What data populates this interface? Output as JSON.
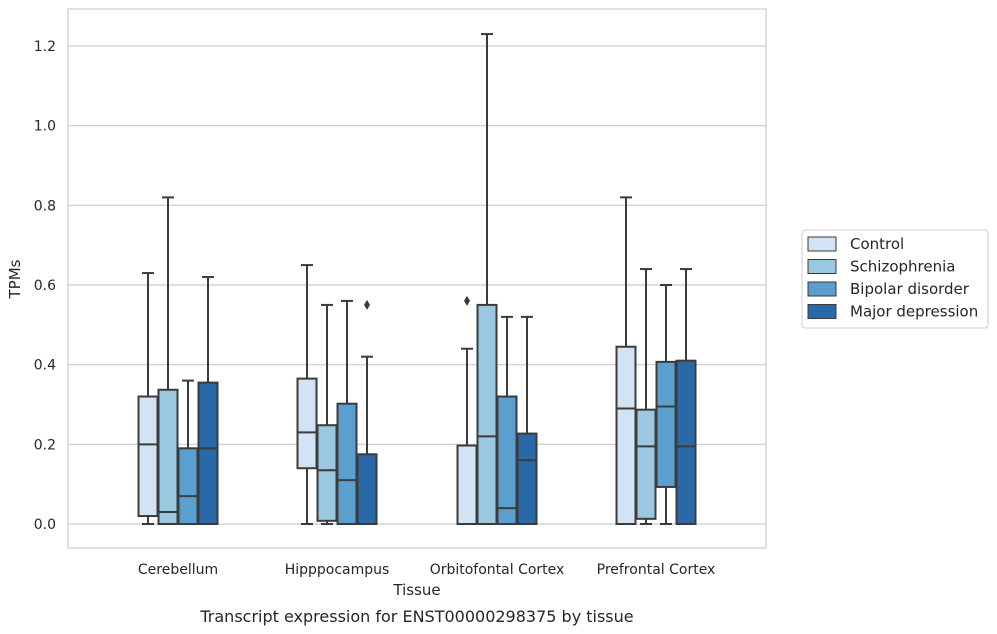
{
  "chart_data": {
    "type": "box",
    "caption": "Transcript expression for ENST00000298375 by tissue",
    "xlabel": "Tissue",
    "ylabel": "TPMs",
    "ylim": [
      -0.06,
      1.29
    ],
    "yticks": [
      0.0,
      0.2,
      0.4,
      0.6,
      0.8,
      1.0,
      1.2
    ],
    "ytick_labels": [
      "0.0",
      "0.2",
      "0.4",
      "0.6",
      "0.8",
      "1.0",
      "1.2"
    ],
    "grid": "horizontal",
    "legend_position": "right",
    "categories": [
      "Cerebellum",
      "Hipppocampus",
      "Orbitofontal Cortex",
      "Prefrontal Cortex"
    ],
    "series": [
      {
        "name": "Control",
        "color": "#d2e3f3",
        "boxes": [
          {
            "whisker_low": 0.0,
            "q1": 0.02,
            "median": 0.2,
            "q3": 0.32,
            "whisker_high": 0.63,
            "outliers": []
          },
          {
            "whisker_low": 0.0,
            "q1": 0.14,
            "median": 0.23,
            "q3": 0.365,
            "whisker_high": 0.65,
            "outliers": []
          },
          {
            "whisker_low": 0.0,
            "q1": 0.0,
            "median": 0.0,
            "q3": 0.197,
            "whisker_high": 0.44,
            "outliers": [
              0.56
            ]
          },
          {
            "whisker_low": 0.0,
            "q1": 0.0,
            "median": 0.29,
            "q3": 0.445,
            "whisker_high": 0.82,
            "outliers": []
          }
        ]
      },
      {
        "name": "Schizophrenia",
        "color": "#9ac8e0",
        "boxes": [
          {
            "whisker_low": 0.0,
            "q1": 0.0,
            "median": 0.03,
            "q3": 0.337,
            "whisker_high": 0.82,
            "outliers": []
          },
          {
            "whisker_low": 0.0,
            "q1": 0.008,
            "median": 0.135,
            "q3": 0.248,
            "whisker_high": 0.55,
            "outliers": []
          },
          {
            "whisker_low": 0.0,
            "q1": 0.0,
            "median": 0.22,
            "q3": 0.55,
            "whisker_high": 1.23,
            "outliers": []
          },
          {
            "whisker_low": 0.0,
            "q1": 0.013,
            "median": 0.195,
            "q3": 0.287,
            "whisker_high": 0.64,
            "outliers": []
          }
        ]
      },
      {
        "name": "Bipolar disorder",
        "color": "#5a9fcd",
        "boxes": [
          {
            "whisker_low": 0.0,
            "q1": 0.0,
            "median": 0.07,
            "q3": 0.19,
            "whisker_high": 0.36,
            "outliers": []
          },
          {
            "whisker_low": 0.0,
            "q1": 0.0,
            "median": 0.11,
            "q3": 0.302,
            "whisker_high": 0.56,
            "outliers": []
          },
          {
            "whisker_low": 0.0,
            "q1": 0.0,
            "median": 0.04,
            "q3": 0.32,
            "whisker_high": 0.52,
            "outliers": []
          },
          {
            "whisker_low": 0.0,
            "q1": 0.093,
            "median": 0.295,
            "q3": 0.407,
            "whisker_high": 0.6,
            "outliers": []
          }
        ]
      },
      {
        "name": "Major depression",
        "color": "#2a69a8",
        "boxes": [
          {
            "whisker_low": 0.0,
            "q1": 0.0,
            "median": 0.19,
            "q3": 0.355,
            "whisker_high": 0.62,
            "outliers": []
          },
          {
            "whisker_low": 0.0,
            "q1": 0.0,
            "median": 0.0,
            "q3": 0.175,
            "whisker_high": 0.42,
            "outliers": [
              0.55
            ]
          },
          {
            "whisker_low": 0.0,
            "q1": 0.0,
            "median": 0.16,
            "q3": 0.227,
            "whisker_high": 0.52,
            "outliers": []
          },
          {
            "whisker_low": 0.0,
            "q1": 0.0,
            "median": 0.195,
            "q3": 0.41,
            "whisker_high": 0.64,
            "outliers": []
          }
        ]
      }
    ]
  }
}
